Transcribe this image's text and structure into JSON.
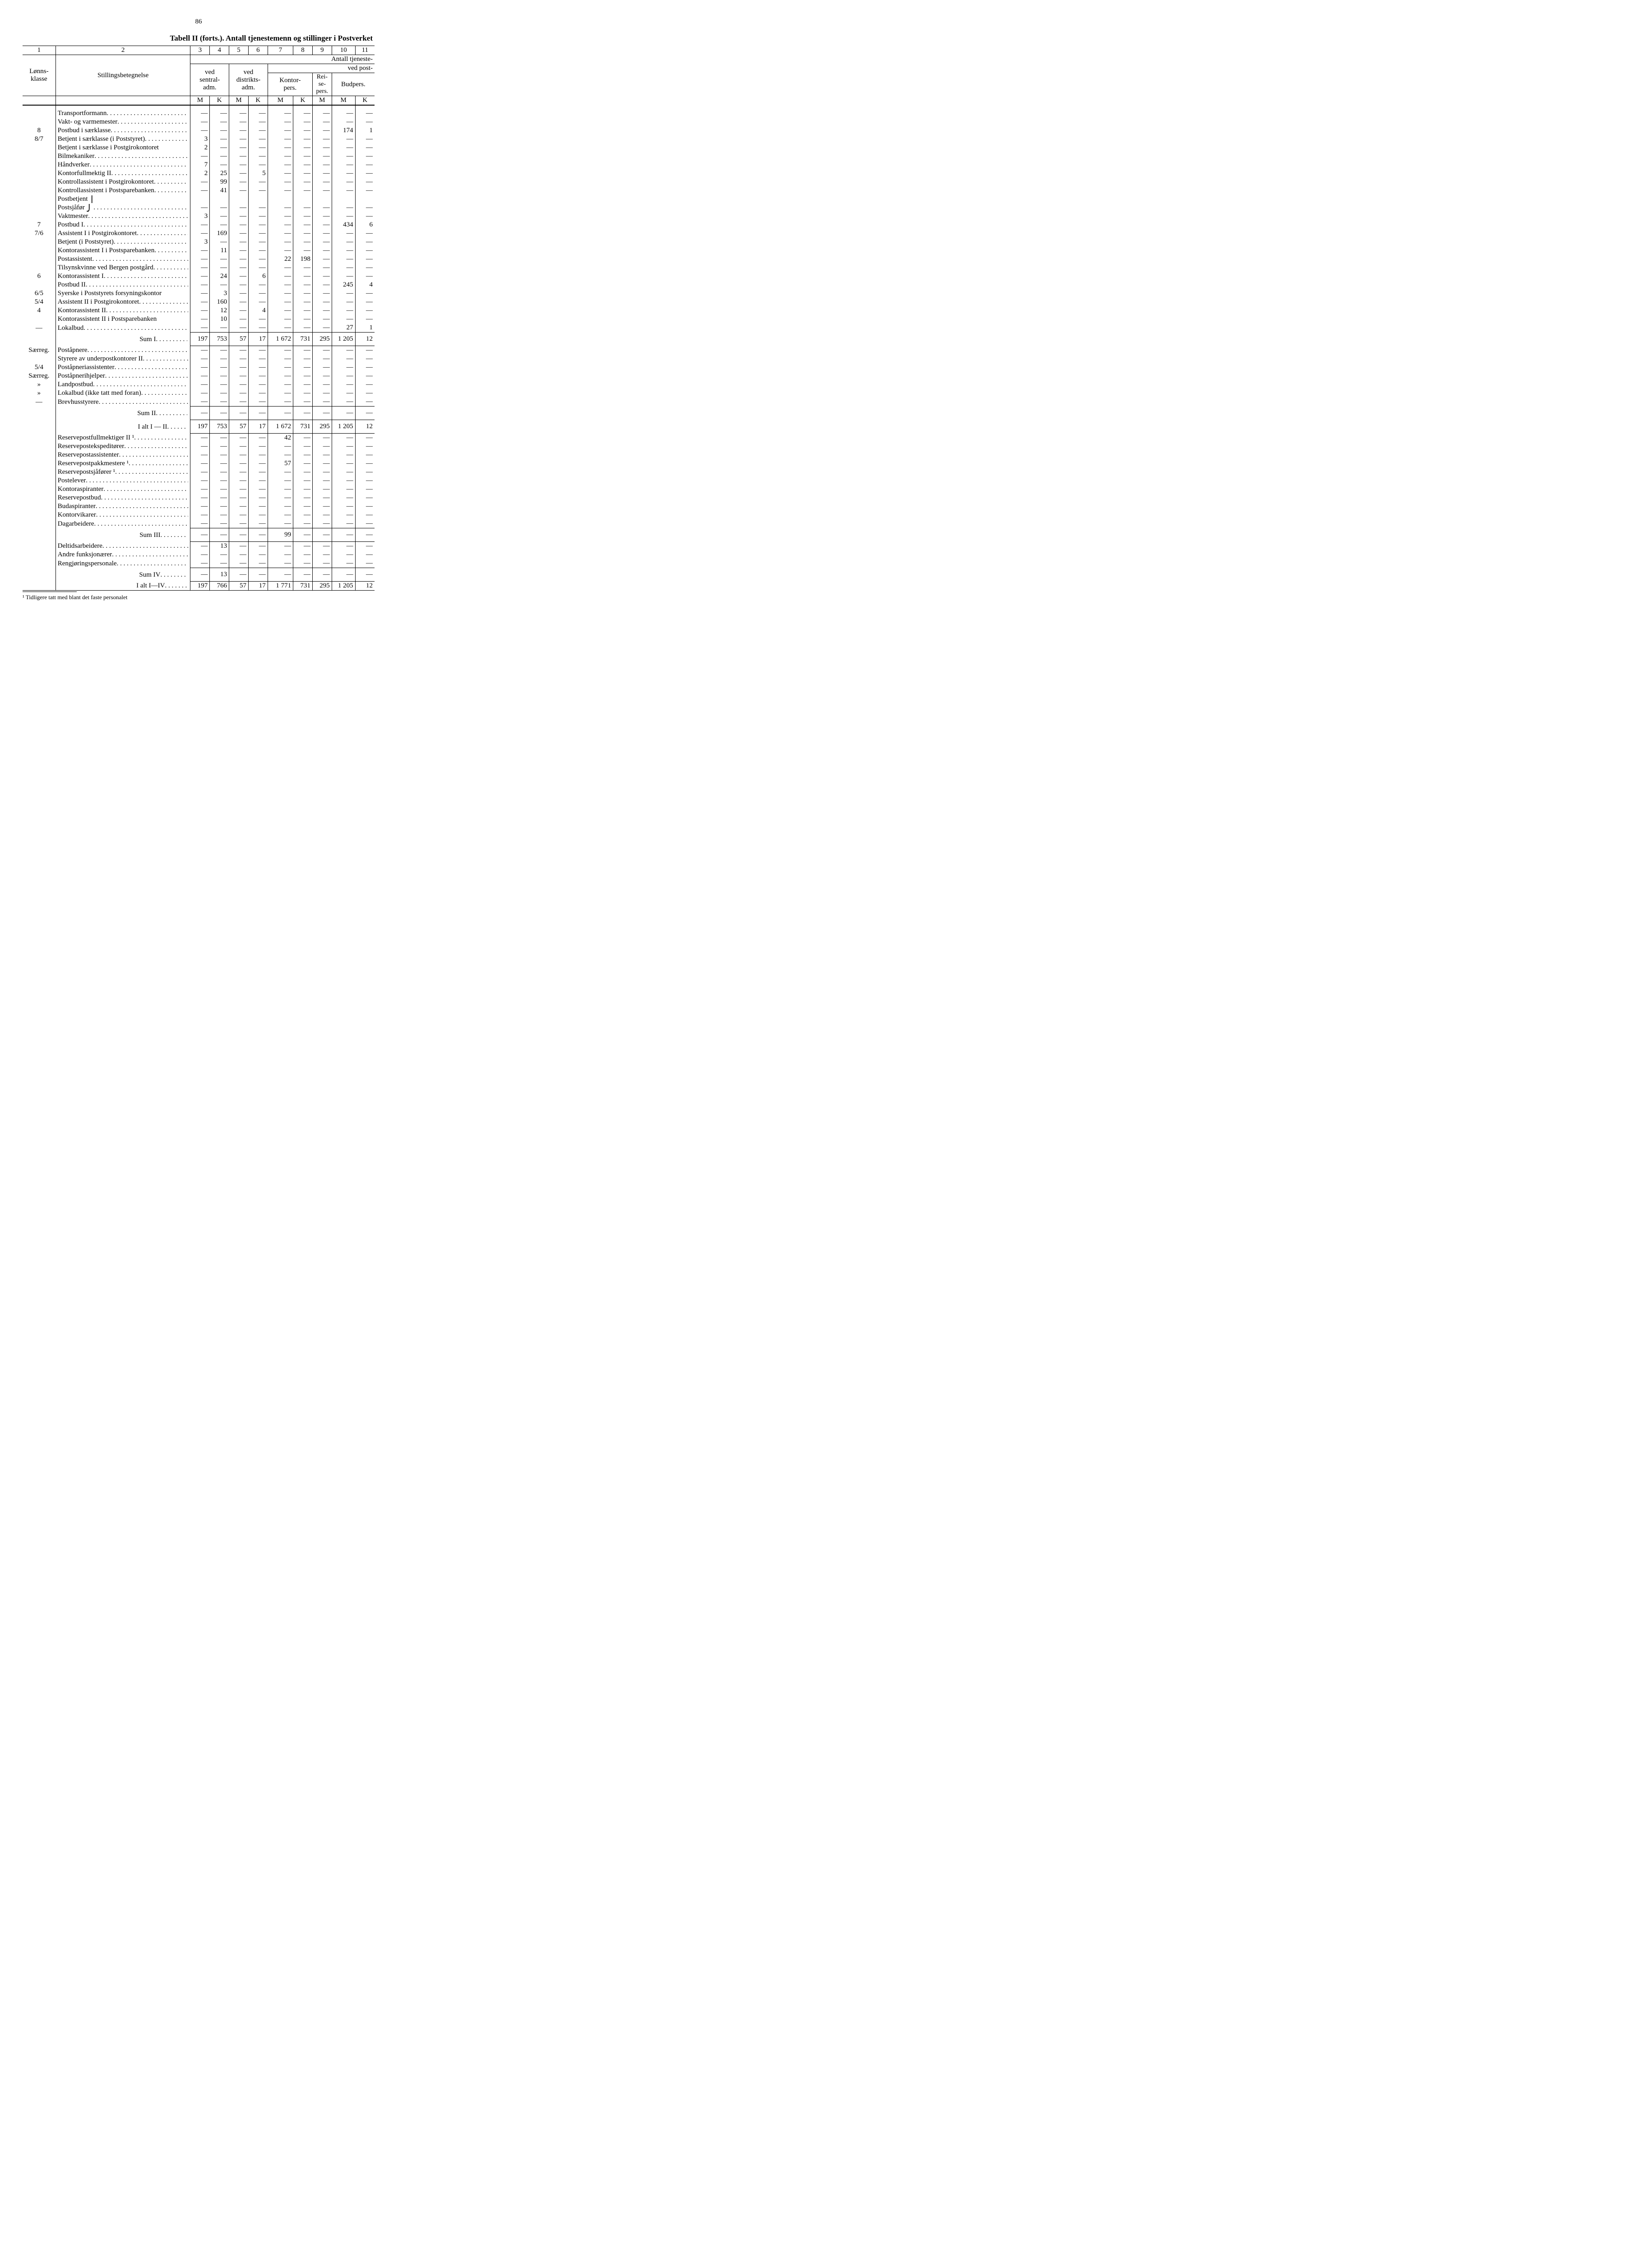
{
  "page_number": "86",
  "title": "Tabell II (forts.). Antall tjenestemenn og stillinger i Postverket",
  "col_nums": [
    "1",
    "2",
    "3",
    "4",
    "5",
    "6",
    "7",
    "8",
    "9",
    "10",
    "11"
  ],
  "super_header": "Antall tjeneste-",
  "header": {
    "lonnsklasse": "Lønns-\nklasse",
    "stillingsbetegnelse": "Stillingsbetegnelse",
    "ved_sentral": "ved\nsentral-\nadm.",
    "ved_distrikts": "ved\ndistrikts-\nadm.",
    "ved_post": "ved post-",
    "kontor_pers": "Kontor-\npers.",
    "reise_pers": "Rei-\nse-\npers.",
    "budpers": "Budpers."
  },
  "subM": "M",
  "subK": "K",
  "rows": [
    {
      "k": "",
      "d": "Transportformann",
      "v": [
        "—",
        "—",
        "—",
        "—",
        "—",
        "—",
        "—",
        "—",
        "—"
      ]
    },
    {
      "k": "",
      "d": "Vakt- og varmemester",
      "v": [
        "—",
        "—",
        "—",
        "—",
        "—",
        "—",
        "—",
        "—",
        "—"
      ]
    },
    {
      "k": "8",
      "d": "Postbud i særklasse",
      "v": [
        "—",
        "—",
        "—",
        "—",
        "—",
        "—",
        "—",
        "174",
        "1"
      ]
    },
    {
      "k": "8/7",
      "d": "Betjent i særklasse (i Poststyret)",
      "v": [
        "3",
        "—",
        "—",
        "—",
        "—",
        "—",
        "—",
        "—",
        "—"
      ]
    },
    {
      "k": "",
      "d": "Betjent i særklasse i Postgirokontoret",
      "nolead": true,
      "v": [
        "2",
        "—",
        "—",
        "—",
        "—",
        "—",
        "—",
        "—",
        "—"
      ]
    },
    {
      "k": "",
      "d": "Bilmekaniker",
      "v": [
        "—",
        "—",
        "—",
        "—",
        "—",
        "—",
        "—",
        "—",
        "—"
      ]
    },
    {
      "k": "",
      "d": "Håndverker",
      "v": [
        "7",
        "—",
        "—",
        "—",
        "—",
        "—",
        "—",
        "—",
        "—"
      ]
    },
    {
      "k": "",
      "d": "Kontorfullmektig II",
      "v": [
        "2",
        "25",
        "—",
        "5",
        "—",
        "—",
        "—",
        "—",
        "—"
      ]
    },
    {
      "k": "",
      "d": "Kontrollassistent i Postgirokontoret",
      "v": [
        "—",
        "99",
        "—",
        "—",
        "—",
        "—",
        "—",
        "—",
        "—"
      ]
    },
    {
      "k": "",
      "d": "Kontrollassistent i Postsparebanken",
      "v": [
        "—",
        "41",
        "—",
        "—",
        "—",
        "—",
        "—",
        "—",
        "—"
      ]
    },
    {
      "k": "",
      "d": "Postbetjent",
      "brace_top": true,
      "v": [
        "",
        "",
        "",
        "",
        "",
        "",
        "",
        "",
        ""
      ]
    },
    {
      "k": "",
      "d": "Postsjåfør",
      "brace_bot": true,
      "v": [
        "—",
        "—",
        "—",
        "—",
        "—",
        "—",
        "—",
        "—",
        "—"
      ]
    },
    {
      "k": "",
      "d": "Vaktmester",
      "v": [
        "3",
        "—",
        "—",
        "—",
        "—",
        "—",
        "—",
        "—",
        "—"
      ]
    },
    {
      "k": "7",
      "d": "Postbud I",
      "v": [
        "—",
        "—",
        "—",
        "—",
        "—",
        "—",
        "—",
        "434",
        "6"
      ]
    },
    {
      "k": "7/6",
      "d": "Assistent I i Postgirokontoret",
      "v": [
        "—",
        "169",
        "—",
        "—",
        "—",
        "—",
        "—",
        "—",
        "—"
      ]
    },
    {
      "k": "",
      "d": "Betjent (i Poststyret)",
      "v": [
        "3",
        "—",
        "—",
        "—",
        "—",
        "—",
        "—",
        "—",
        "—"
      ]
    },
    {
      "k": "",
      "d": "Kontorassistent I i Postsparebanken",
      "v": [
        "—",
        "11",
        "—",
        "—",
        "—",
        "—",
        "—",
        "—",
        "—"
      ]
    },
    {
      "k": "",
      "d": "Postassistent",
      "v": [
        "—",
        "—",
        "—",
        "—",
        "22",
        "198",
        "—",
        "—",
        "—"
      ]
    },
    {
      "k": "",
      "d": "Tilsynskvinne ved Bergen postgård",
      "v": [
        "—",
        "—",
        "—",
        "—",
        "—",
        "—",
        "—",
        "—",
        "—"
      ]
    },
    {
      "k": "6",
      "d": "Kontorassistent I",
      "v": [
        "—",
        "24",
        "—",
        "6",
        "—",
        "—",
        "—",
        "—",
        "—"
      ]
    },
    {
      "k": "",
      "d": "Postbud II",
      "v": [
        "—",
        "—",
        "—",
        "—",
        "—",
        "—",
        "—",
        "245",
        "4"
      ]
    },
    {
      "k": "6/5",
      "d": "Syerske i Poststyrets forsyningskontor",
      "nolead": true,
      "v": [
        "—",
        "3",
        "—",
        "—",
        "—",
        "—",
        "—",
        "—",
        "—"
      ]
    },
    {
      "k": "5/4",
      "d": "Assistent II i Postgirokontoret",
      "v": [
        "—",
        "160",
        "—",
        "—",
        "—",
        "—",
        "—",
        "—",
        "—"
      ]
    },
    {
      "k": "4",
      "d": "Kontorassistent II",
      "v": [
        "—",
        "12",
        "—",
        "4",
        "—",
        "—",
        "—",
        "—",
        "—"
      ]
    },
    {
      "k": "",
      "d": "Kontorassistent II i Postsparebanken",
      "nolead": true,
      "v": [
        "—",
        "10",
        "—",
        "—",
        "—",
        "—",
        "—",
        "—",
        "—"
      ]
    },
    {
      "k": "—",
      "d": "Lokalbud",
      "v": [
        "—",
        "—",
        "—",
        "—",
        "—",
        "—",
        "—",
        "27",
        "1"
      ]
    }
  ],
  "sum1": {
    "label": "Sum I",
    "v": [
      "197",
      "753",
      "57",
      "17",
      "1 672",
      "731",
      "295",
      "1 205",
      "12"
    ]
  },
  "rows2": [
    {
      "k": "Særreg.",
      "d": "Poståpnere",
      "v": [
        "—",
        "—",
        "—",
        "—",
        "—",
        "—",
        "—",
        "—",
        "—"
      ]
    },
    {
      "k": "",
      "d": "Styrere av underpostkontorer II",
      "v": [
        "—",
        "—",
        "—",
        "—",
        "—",
        "—",
        "—",
        "—",
        "—"
      ]
    },
    {
      "k": "5/4",
      "d": "Poståpneriassistenter",
      "v": [
        "—",
        "—",
        "—",
        "—",
        "—",
        "—",
        "—",
        "—",
        "—"
      ]
    },
    {
      "k": "Særreg.",
      "d": "Poståpnerihjelper",
      "v": [
        "—",
        "—",
        "—",
        "—",
        "—",
        "—",
        "—",
        "—",
        "—"
      ]
    },
    {
      "k": "»",
      "d": "Landpostbud",
      "v": [
        "—",
        "—",
        "—",
        "—",
        "—",
        "—",
        "—",
        "—",
        "—"
      ]
    },
    {
      "k": "»",
      "d": "Lokalbud (ikke tatt med foran)",
      "v": [
        "—",
        "—",
        "—",
        "—",
        "—",
        "—",
        "—",
        "—",
        "—"
      ]
    },
    {
      "k": "—",
      "d": "Brevhusstyrere",
      "v": [
        "—",
        "—",
        "—",
        "—",
        "—",
        "—",
        "—",
        "—",
        "—"
      ]
    }
  ],
  "sum2": {
    "label": "Sum II",
    "v": [
      "—",
      "—",
      "—",
      "—",
      "—",
      "—",
      "—",
      "—",
      "—"
    ]
  },
  "ialt12": {
    "label": "I alt I — II",
    "v": [
      "197",
      "753",
      "57",
      "17",
      "1 672",
      "731",
      "295",
      "1 205",
      "12"
    ]
  },
  "rows3": [
    {
      "k": "",
      "d": "Reservepostfullmektiger II ¹",
      "v": [
        "—",
        "—",
        "—",
        "—",
        "42",
        "—",
        "—",
        "—",
        "—"
      ]
    },
    {
      "k": "",
      "d": "Reservepostekspeditører",
      "v": [
        "—",
        "—",
        "—",
        "—",
        "—",
        "—",
        "—",
        "—",
        "—"
      ]
    },
    {
      "k": "",
      "d": "Reservepostassistenter",
      "v": [
        "—",
        "—",
        "—",
        "—",
        "—",
        "—",
        "—",
        "—",
        "—"
      ]
    },
    {
      "k": "",
      "d": "Reservepostpakkmestere ¹",
      "v": [
        "—",
        "—",
        "—",
        "—",
        "57",
        "—",
        "—",
        "—",
        "—"
      ]
    },
    {
      "k": "",
      "d": "Reservepostsjåfører ¹",
      "v": [
        "—",
        "—",
        "—",
        "—",
        "—",
        "—",
        "—",
        "—",
        "—"
      ]
    },
    {
      "k": "",
      "d": "Postelever",
      "v": [
        "—",
        "—",
        "—",
        "—",
        "—",
        "—",
        "—",
        "—",
        "—"
      ]
    },
    {
      "k": "",
      "d": "Kontoraspiranter",
      "v": [
        "—",
        "—",
        "—",
        "—",
        "—",
        "—",
        "—",
        "—",
        "—"
      ]
    },
    {
      "k": "",
      "d": "Reservepostbud",
      "v": [
        "—",
        "—",
        "—",
        "—",
        "—",
        "—",
        "—",
        "—",
        "—"
      ]
    },
    {
      "k": "",
      "d": "Budaspiranter",
      "v": [
        "—",
        "—",
        "—",
        "—",
        "—",
        "—",
        "—",
        "—",
        "—"
      ]
    },
    {
      "k": "",
      "d": "Kontorvikarer",
      "v": [
        "—",
        "—",
        "—",
        "—",
        "—",
        "—",
        "—",
        "—",
        "—"
      ]
    },
    {
      "k": "",
      "d": "Dagarbeidere",
      "v": [
        "—",
        "—",
        "—",
        "—",
        "—",
        "—",
        "—",
        "—",
        "—"
      ]
    }
  ],
  "sum3": {
    "label": "Sum III",
    "v": [
      "—",
      "—",
      "—",
      "—",
      "99",
      "—",
      "—",
      "—",
      "—"
    ]
  },
  "rows4": [
    {
      "k": "",
      "d": "Deltidsarbeidere",
      "v": [
        "—",
        "13",
        "—",
        "—",
        "—",
        "—",
        "—",
        "—",
        "—"
      ]
    },
    {
      "k": "",
      "d": "Andre funksjonærer",
      "v": [
        "—",
        "—",
        "—",
        "—",
        "—",
        "—",
        "—",
        "—",
        "—"
      ]
    },
    {
      "k": "",
      "d": "Rengjøringspersonale",
      "v": [
        "—",
        "—",
        "—",
        "—",
        "—",
        "—",
        "—",
        "—",
        "—"
      ]
    }
  ],
  "sum4": {
    "label": "Sum IV",
    "v": [
      "—",
      "13",
      "—",
      "—",
      "—",
      "—",
      "—",
      "—",
      "—"
    ]
  },
  "ialt14": {
    "label": "I alt I—IV",
    "v": [
      "197",
      "766",
      "57",
      "17",
      "1 771",
      "731",
      "295",
      "1 205",
      "12"
    ]
  },
  "footnote": "¹  Tidligere tatt med blant det faste personalet"
}
